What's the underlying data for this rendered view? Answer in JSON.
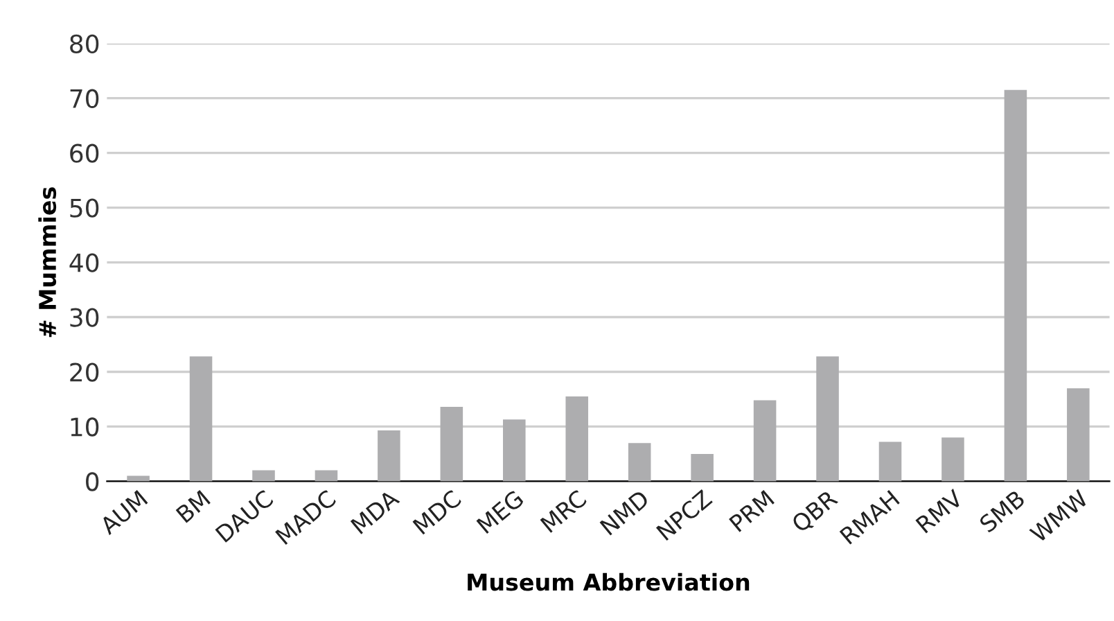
{
  "chart_data": {
    "type": "bar",
    "xlabel": "Museum Abbreviation",
    "ylabel": "# Mummies",
    "categories": [
      "AUM",
      "BM",
      "DAUC",
      "MADC",
      "MDA",
      "MDC",
      "MEG",
      "MRC",
      "NMD",
      "NPCZ",
      "PRM",
      "QBR",
      "RMAH",
      "RMV",
      "SMB",
      "WMW"
    ],
    "values": [
      1,
      22.8,
      2,
      2,
      9.3,
      13.6,
      11.3,
      15.5,
      7,
      5,
      14.8,
      22.8,
      7.2,
      8,
      71.5,
      17
    ],
    "color": "#adadaf",
    "ylim": [
      0,
      80
    ],
    "yticks": [
      0,
      10,
      20,
      30,
      40,
      50,
      60,
      70,
      80
    ],
    "grid": "y"
  }
}
